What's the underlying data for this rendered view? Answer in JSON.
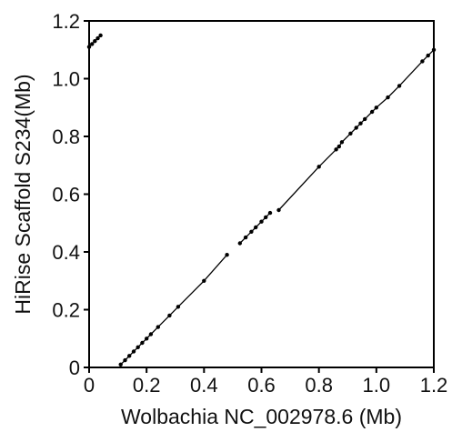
{
  "chart_data": {
    "type": "scatter",
    "title": "",
    "xlabel": "Wolbachia NC_002978.6 (Mb)",
    "ylabel": "HiRise Scaffold S234(Mb)",
    "xlim": [
      0,
      1.2
    ],
    "ylim": [
      0,
      1.2
    ],
    "xticks": [
      "0",
      "0.2",
      "0.4",
      "0.6",
      "0.8",
      "1.0",
      "1.2"
    ],
    "yticks": [
      "0",
      "0.2",
      "0.4",
      "0.6",
      "0.8",
      "1.0",
      "1.2"
    ],
    "grid": false,
    "legend": "none",
    "colors": {
      "line": "#000000",
      "points": "#000000"
    },
    "series": [
      {
        "x": [
          0.0,
          0.01,
          0.02,
          0.03,
          0.04
        ],
        "y": [
          1.11,
          1.12,
          1.13,
          1.14,
          1.15
        ]
      },
      {
        "x": [
          0.11,
          0.125,
          0.14,
          0.155,
          0.17,
          0.185,
          0.2,
          0.215,
          0.24,
          0.28,
          0.31,
          0.4,
          0.48
        ],
        "y": [
          0.01,
          0.025,
          0.04,
          0.055,
          0.07,
          0.085,
          0.1,
          0.115,
          0.14,
          0.18,
          0.21,
          0.3,
          0.39
        ]
      },
      {
        "x": [
          0.525,
          0.545,
          0.565,
          0.58,
          0.6,
          0.615,
          0.63
        ],
        "y": [
          0.43,
          0.45,
          0.47,
          0.485,
          0.505,
          0.52,
          0.535
        ]
      },
      {
        "x": [
          0.66,
          0.8,
          0.86,
          0.87,
          0.88,
          0.91,
          0.93,
          0.945,
          0.96,
          0.985,
          1.0,
          1.04,
          1.08,
          1.16,
          1.18,
          1.2
        ],
        "y": [
          0.545,
          0.695,
          0.755,
          0.765,
          0.78,
          0.81,
          0.83,
          0.845,
          0.86,
          0.885,
          0.9,
          0.935,
          0.975,
          1.06,
          1.08,
          1.1
        ]
      }
    ]
  }
}
